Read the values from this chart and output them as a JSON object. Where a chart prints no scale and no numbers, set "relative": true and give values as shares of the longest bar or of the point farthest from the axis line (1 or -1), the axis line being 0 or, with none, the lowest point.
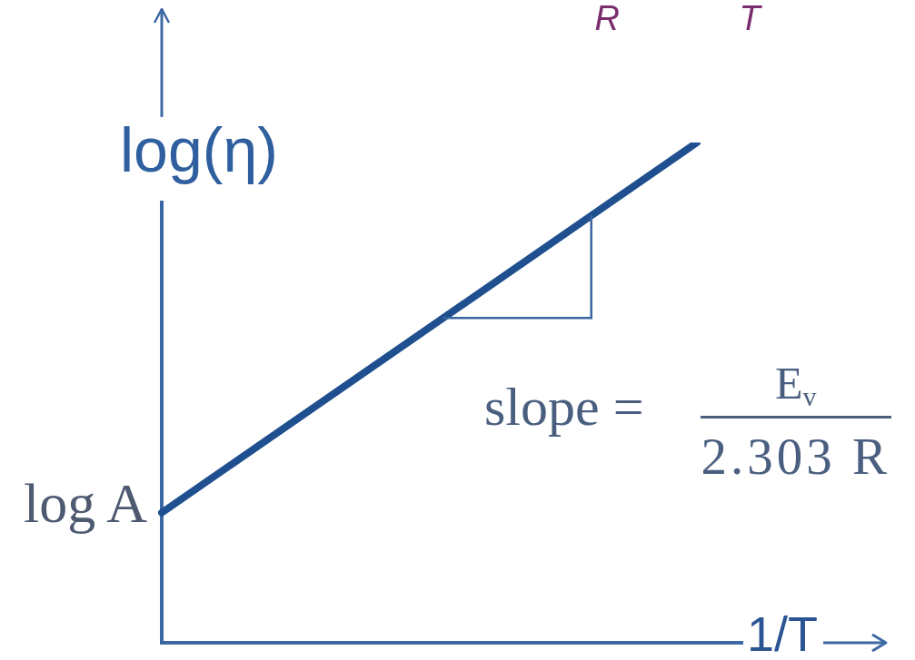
{
  "chart_data": {
    "type": "line",
    "relative": true,
    "categories": [
      null,
      null
    ],
    "values": [
      0.26,
      1
    ],
    "color": "#1f4f8f",
    "xlabel": "1/T",
    "ylabel": "log(η)",
    "annotations": [
      "log A",
      "slope =",
      "E$_{v}$",
      "2.303 R",
      "R",
      "T"
    ]
  }
}
